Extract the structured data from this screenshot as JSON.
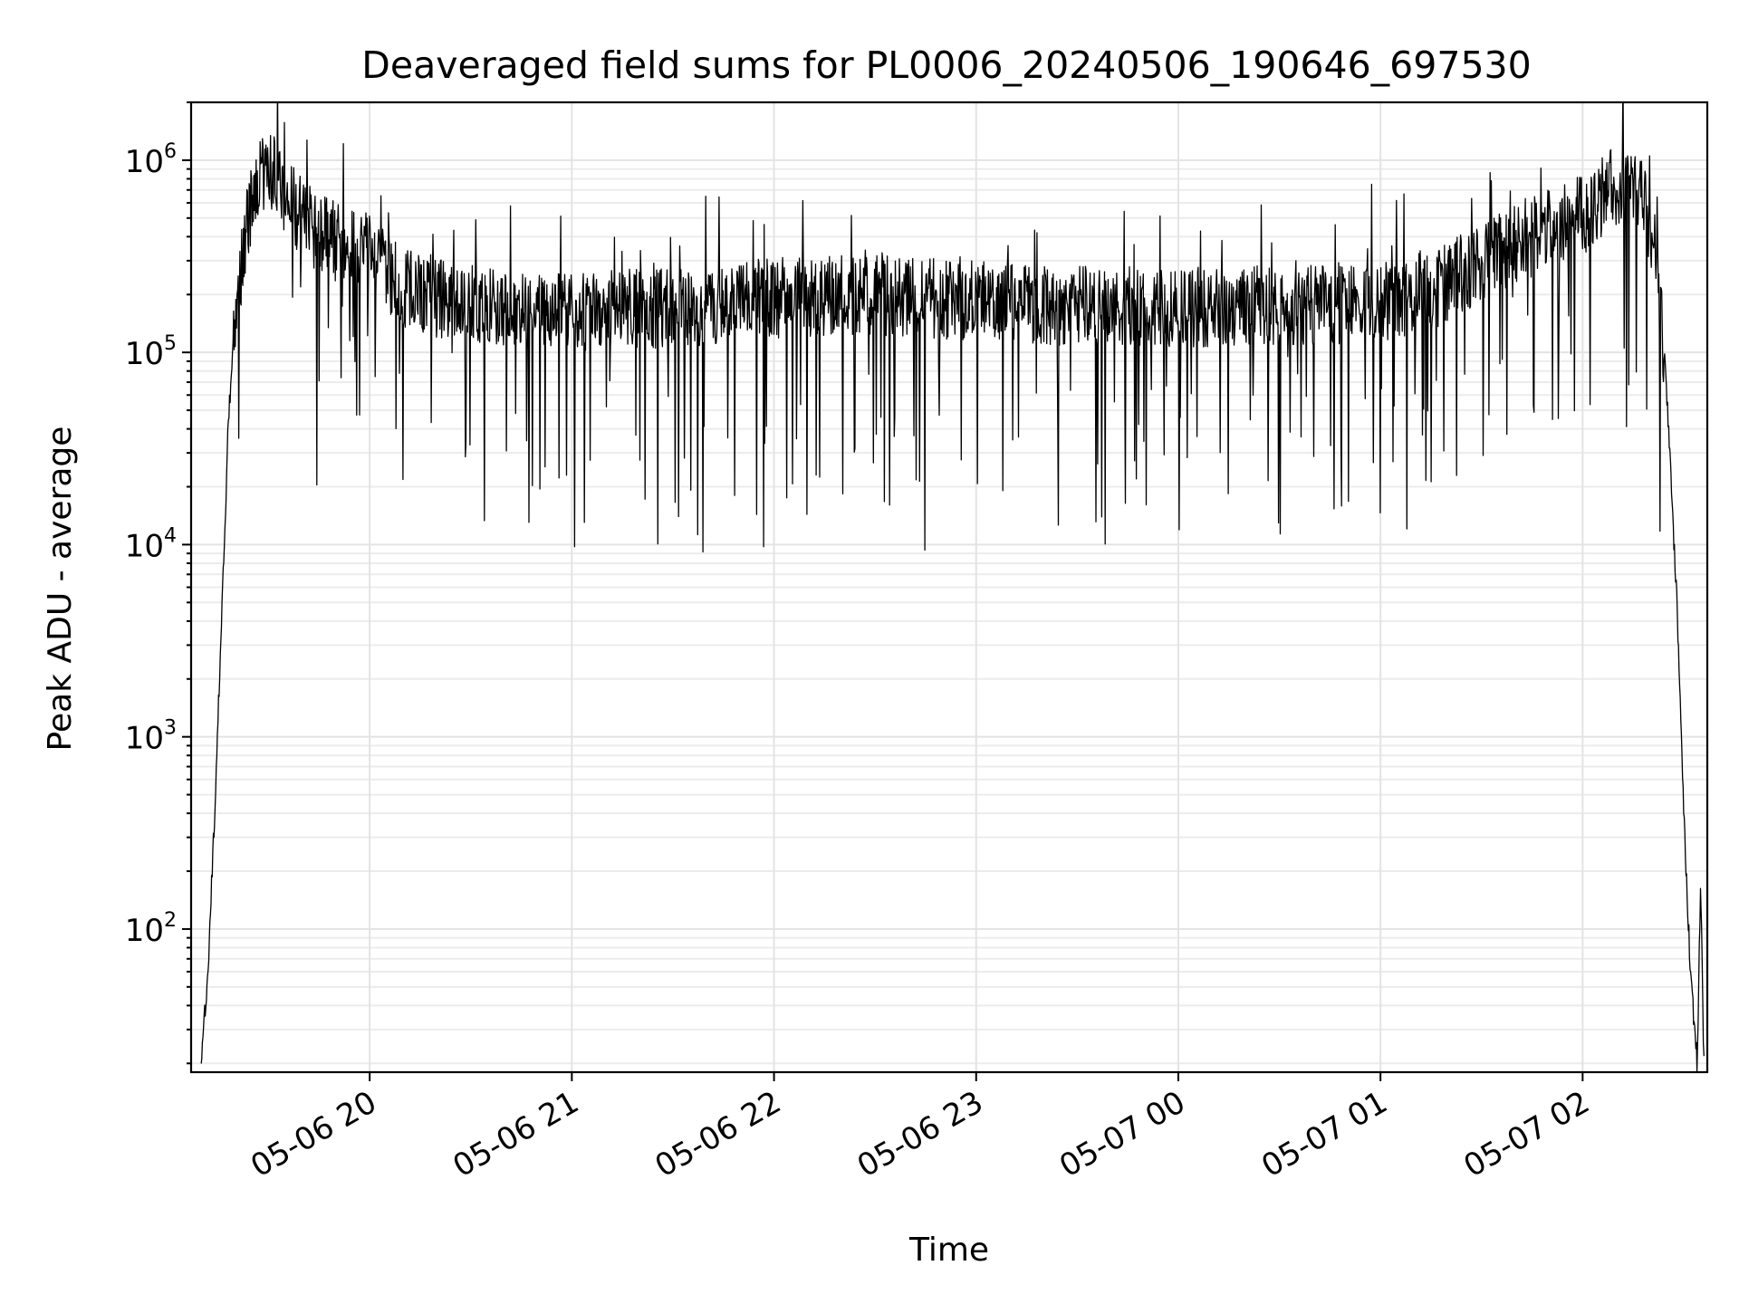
{
  "chart_data": {
    "type": "line",
    "title": "Deaveraged field sums for PL0006_20240506_190646_697530",
    "xlabel": "Time",
    "ylabel": "Peak ADU - average",
    "yscale": "log",
    "grid": true,
    "x_range": [
      "2024-05-06 19:07",
      "2024-05-07 02:37"
    ],
    "ylim": [
      18,
      2000000
    ],
    "x_ticks": [
      {
        "value": "2024-05-06 20:00",
        "label": "05-06 20"
      },
      {
        "value": "2024-05-06 21:00",
        "label": "05-06 21"
      },
      {
        "value": "2024-05-06 22:00",
        "label": "05-06 22"
      },
      {
        "value": "2024-05-06 23:00",
        "label": "05-06 23"
      },
      {
        "value": "2024-05-07 00:00",
        "label": "05-07 00"
      },
      {
        "value": "2024-05-07 01:00",
        "label": "05-07 01"
      },
      {
        "value": "2024-05-07 02:00",
        "label": "05-07 02"
      }
    ],
    "y_ticks": [
      {
        "value": 100,
        "base": "10",
        "exp": "2"
      },
      {
        "value": 1000,
        "base": "10",
        "exp": "3"
      },
      {
        "value": 10000,
        "base": "10",
        "exp": "4"
      },
      {
        "value": 100000,
        "base": "10",
        "exp": "5"
      },
      {
        "value": 1000000,
        "base": "10",
        "exp": "6"
      }
    ],
    "series": [
      {
        "color": "#000000",
        "x": [
          "2024-05-06 19:10",
          "2024-05-06 19:12",
          "2024-05-06 19:14",
          "2024-05-06 19:16",
          "2024-05-06 19:18",
          "2024-05-06 19:20",
          "2024-05-06 19:23",
          "2024-05-06 19:26",
          "2024-05-06 19:29",
          "2024-05-06 19:32",
          "2024-05-06 19:35",
          "2024-05-06 19:40",
          "2024-05-06 19:45",
          "2024-05-06 19:50",
          "2024-05-06 19:55",
          "2024-05-06 20:00",
          "2024-05-06 20:05",
          "2024-05-06 20:10",
          "2024-05-06 20:20",
          "2024-05-06 20:30",
          "2024-05-06 20:45",
          "2024-05-06 21:00",
          "2024-05-06 21:30",
          "2024-05-06 22:00",
          "2024-05-06 22:30",
          "2024-05-06 23:00",
          "2024-05-06 23:30",
          "2024-05-07 00:00",
          "2024-05-07 00:30",
          "2024-05-07 01:00",
          "2024-05-07 01:15",
          "2024-05-07 01:25",
          "2024-05-07 01:35",
          "2024-05-07 01:45",
          "2024-05-07 01:55",
          "2024-05-07 02:03",
          "2024-05-07 02:08",
          "2024-05-07 02:13",
          "2024-05-07 02:18",
          "2024-05-07 02:22",
          "2024-05-07 02:25",
          "2024-05-07 02:28",
          "2024-05-07 02:30",
          "2024-05-07 02:32",
          "2024-05-07 02:34",
          "2024-05-07 02:35",
          "2024-05-07 02:36"
        ],
        "y": [
          20,
          60,
          400,
          4000,
          40000,
          150000,
          400000,
          700000,
          880000,
          850000,
          650000,
          500000,
          420000,
          380000,
          360000,
          320000,
          260000,
          220000,
          190000,
          175000,
          170000,
          165000,
          170000,
          190000,
          200000,
          185000,
          175000,
          170000,
          175000,
          180000,
          210000,
          260000,
          330000,
          400000,
          470000,
          560000,
          700000,
          720000,
          620000,
          300000,
          60000,
          5000,
          400,
          60,
          20,
          180,
          20
        ]
      }
    ]
  }
}
